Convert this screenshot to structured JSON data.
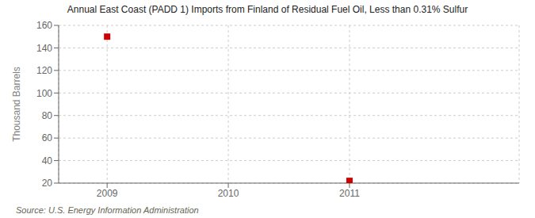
{
  "chart_data": {
    "type": "scatter",
    "title": "Annual East Coast (PADD 1) Imports from Finland of Residual Fuel Oil, Less than 0.31% Sulfur",
    "y_label": "Thousand Barrels",
    "annotations": [
      "Source: U.S. Energy Information Administration"
    ],
    "x": [
      2009,
      2011
    ],
    "values": [
      150,
      22
    ],
    "color": "#cc0000",
    "marker": "square",
    "xlim": [
      2008.6,
      2012.4
    ],
    "ylim": [
      20,
      160
    ],
    "xticks": [
      2009,
      2010,
      2011
    ],
    "yticks": [
      20,
      40,
      60,
      80,
      100,
      120,
      140,
      160
    ],
    "grid": true
  }
}
